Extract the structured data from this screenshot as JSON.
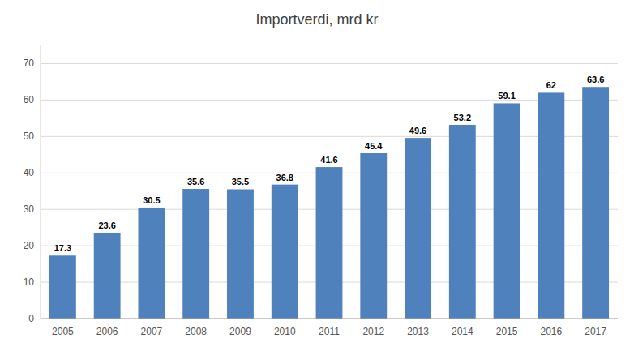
{
  "chart_data": {
    "type": "bar",
    "title": "Importverdi, mrd kr",
    "categories": [
      2005,
      2006,
      2007,
      2008,
      2009,
      2010,
      2011,
      2012,
      2013,
      2014,
      2015,
      2016,
      2017
    ],
    "values": [
      17.3,
      23.6,
      30.5,
      35.6,
      35.5,
      36.8,
      41.6,
      45.4,
      49.6,
      53.2,
      59.1,
      62.0,
      63.6
    ],
    "color": "#4F81BD",
    "ylim": [
      0,
      75
    ],
    "yticks": [
      0,
      10,
      20,
      30,
      40,
      50,
      60,
      70
    ],
    "grid": true,
    "data_labels": true
  }
}
